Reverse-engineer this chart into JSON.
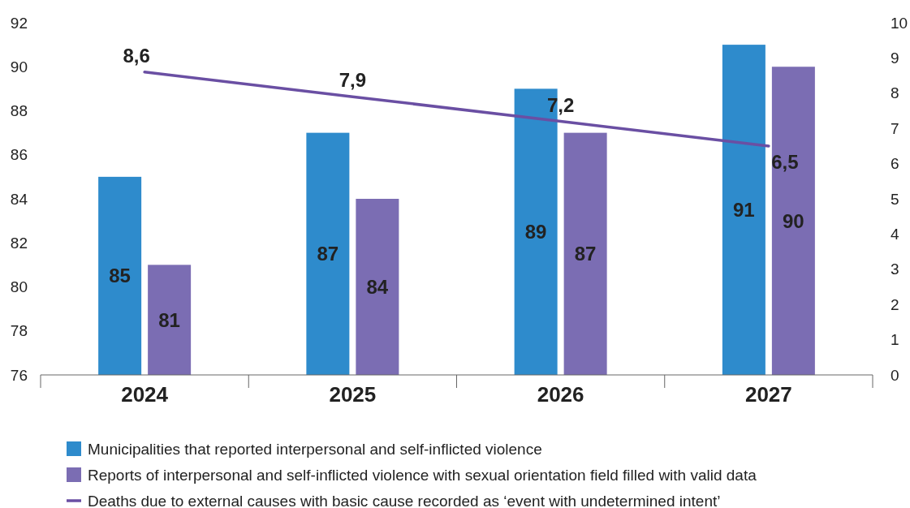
{
  "chart_data": {
    "type": "bar",
    "categories": [
      "2024",
      "2025",
      "2026",
      "2027"
    ],
    "series": [
      {
        "name": "Municipalities that reported interpersonal and self-inflicted violence",
        "color": "#2e8bcc",
        "values": [
          85,
          87,
          89,
          91
        ],
        "value_labels": [
          "85",
          "87",
          "89",
          "91"
        ]
      },
      {
        "name": "Reports of interpersonal and self-inflicted violence with sexual orientation field filled with valid data",
        "color": "#7b6db3",
        "values": [
          81,
          84,
          87,
          90
        ],
        "value_labels": [
          "81",
          "84",
          "87",
          "90"
        ]
      },
      {
        "name": "Deaths due to external causes with basic cause recorded as ‘event with undetermined intent’",
        "type": "line",
        "axis": "y2",
        "color": "#6a4fa3",
        "values": [
          8.6,
          7.9,
          7.2,
          6.5
        ],
        "value_labels": [
          "8,6",
          "7,9",
          "7,2",
          "6,5"
        ]
      }
    ],
    "ylim": [
      76,
      92
    ],
    "yticks": [
      76,
      78,
      80,
      82,
      84,
      86,
      88,
      90,
      92
    ],
    "y2lim": [
      0,
      10
    ],
    "y2ticks": [
      0,
      1,
      2,
      3,
      4,
      5,
      6,
      7,
      8,
      9,
      10
    ],
    "grid": false,
    "legend": "bottom",
    "marker": "none",
    "line_style": "solid"
  }
}
